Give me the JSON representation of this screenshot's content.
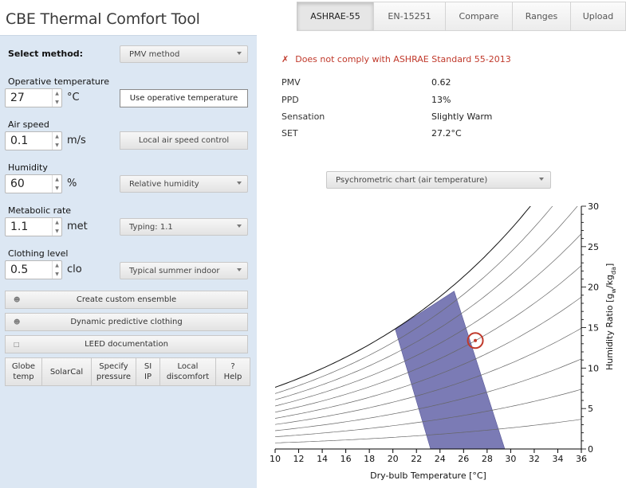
{
  "app": {
    "title": "CBE Thermal Comfort Tool"
  },
  "tabs": [
    {
      "label": "ASHRAE-55",
      "active": true
    },
    {
      "label": "EN-15251",
      "active": false
    },
    {
      "label": "Compare",
      "active": false
    },
    {
      "label": "Ranges",
      "active": false
    },
    {
      "label": "Upload",
      "active": false
    }
  ],
  "inputs": {
    "method_label": "Select method:",
    "method_value": "PMV method",
    "operative_temp": {
      "label": "Operative temperature",
      "value": "27",
      "unit": "°C",
      "button": "Use operative temperature"
    },
    "air_speed": {
      "label": "Air speed",
      "value": "0.1",
      "unit": "m/s",
      "button": "Local air speed control"
    },
    "humidity": {
      "label": "Humidity",
      "value": "60",
      "unit": "%",
      "select": "Relative humidity"
    },
    "metabolic": {
      "label": "Metabolic rate",
      "value": "1.1",
      "unit": "met",
      "select": "Typing: 1.1"
    },
    "clothing": {
      "label": "Clothing level",
      "value": "0.5",
      "unit": "clo",
      "select": "Typical summer indoor"
    }
  },
  "buttons": {
    "custom_ensemble": "Create custom ensemble",
    "dynamic_clothing": "Dynamic predictive clothing",
    "leed": "LEED documentation"
  },
  "bottom_row": [
    {
      "line1": "Globe",
      "line2": "temp"
    },
    {
      "line1": "SolarCal",
      "line2": ""
    },
    {
      "line1": "Specify",
      "line2": "pressure"
    },
    {
      "line1": "SI",
      "line2": "IP"
    },
    {
      "line1": "Local",
      "line2": "discomfort"
    },
    {
      "line1": "?",
      "line2": "Help"
    }
  ],
  "results": {
    "compliance": "Does not comply with ASHRAE Standard 55-2013",
    "compliance_color": "#c0392b",
    "rows": [
      {
        "label": "PMV",
        "value": "0.62"
      },
      {
        "label": "PPD",
        "value": "13%"
      },
      {
        "label": "Sensation",
        "value": "Slightly Warm"
      },
      {
        "label": "SET",
        "value": "27.2°C"
      }
    ]
  },
  "chart_select": "Psychrometric chart (air temperature)",
  "chart_data": {
    "type": "psychrometric",
    "xlabel": "Dry-bulb Temperature [°C]",
    "ylabel_main": "Humidity Ratio [g",
    "ylabel_sub1": "w",
    "ylabel_mid": "/kg",
    "ylabel_sub2": "da",
    "ylabel_end": "]",
    "xlim": [
      10,
      36
    ],
    "ylim": [
      0,
      30
    ],
    "x_ticks": [
      "10",
      "12",
      "14",
      "16",
      "18",
      "20",
      "22",
      "24",
      "26",
      "28",
      "30",
      "32",
      "34",
      "36"
    ],
    "y_ticks": [
      "0",
      "5",
      "10",
      "15",
      "20",
      "25",
      "30"
    ],
    "rh_curves": [
      10,
      20,
      30,
      40,
      50,
      60,
      70,
      80,
      90,
      100
    ],
    "comfort_zone": {
      "color": "#7b7bb5",
      "polygon": [
        [
          23.2,
          0
        ],
        [
          29.5,
          0
        ],
        [
          25.2,
          19.5
        ],
        [
          20.2,
          14.8
        ]
      ]
    },
    "point": {
      "t": 27,
      "w": 13.4,
      "color": "#c0392b"
    }
  },
  "colors": {
    "panel": "#dce7f3",
    "accent_red": "#c0392b"
  }
}
